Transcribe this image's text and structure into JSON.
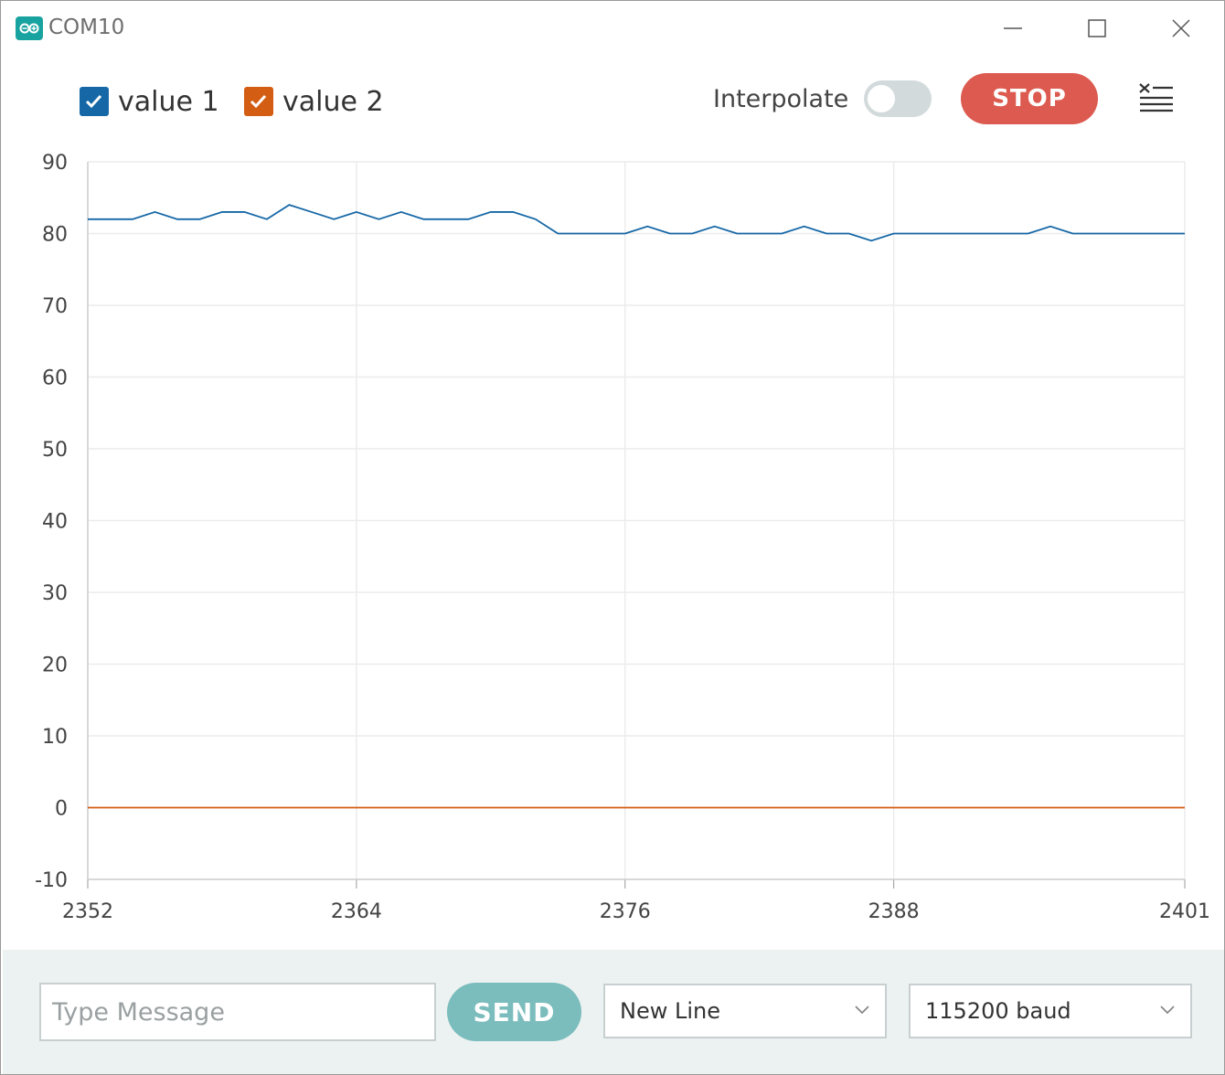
{
  "window": {
    "title": "COM10",
    "icons": {
      "app": "arduino-infinity-icon",
      "minimize": "minimize-icon",
      "maximize": "maximize-icon",
      "close": "close-icon"
    }
  },
  "toolbar": {
    "series": [
      {
        "label": "value 1",
        "checked": true,
        "color": "#1567a6"
      },
      {
        "label": "value 2",
        "checked": true,
        "color": "#d35d12"
      }
    ],
    "interpolate_label": "Interpolate",
    "interpolate_on": false,
    "stop_label": "STOP",
    "clear_icon": "clear-output-icon"
  },
  "chart_data": {
    "type": "line",
    "xlim": [
      2352,
      2401
    ],
    "ylim": [
      -10,
      90
    ],
    "x_ticks": [
      "2352",
      "2364",
      "2376",
      "2388",
      "2401"
    ],
    "y_ticks": [
      "90",
      "80",
      "70",
      "60",
      "50",
      "40",
      "30",
      "20",
      "10",
      "0",
      "-10"
    ],
    "grid": true,
    "x": [
      2352,
      2353,
      2354,
      2355,
      2356,
      2357,
      2358,
      2359,
      2360,
      2361,
      2362,
      2363,
      2364,
      2365,
      2366,
      2367,
      2368,
      2369,
      2370,
      2371,
      2372,
      2373,
      2374,
      2375,
      2376,
      2377,
      2378,
      2379,
      2380,
      2381,
      2382,
      2383,
      2384,
      2385,
      2386,
      2387,
      2388,
      2389,
      2390,
      2391,
      2392,
      2393,
      2394,
      2395,
      2396,
      2397,
      2398,
      2399,
      2400,
      2401
    ],
    "series": [
      {
        "name": "value 1",
        "color": "#1567a6",
        "values": [
          82,
          82,
          82,
          83,
          82,
          82,
          83,
          83,
          82,
          84,
          83,
          82,
          83,
          82,
          83,
          82,
          82,
          82,
          83,
          83,
          82,
          80,
          80,
          80,
          80,
          81,
          80,
          80,
          81,
          80,
          80,
          80,
          81,
          80,
          80,
          79,
          80,
          80,
          80,
          80,
          80,
          80,
          80,
          81,
          80,
          80,
          80,
          80,
          80,
          80
        ]
      },
      {
        "name": "value 2",
        "color": "#d35d12",
        "values": [
          0,
          0,
          0,
          0,
          0,
          0,
          0,
          0,
          0,
          0,
          0,
          0,
          0,
          0,
          0,
          0,
          0,
          0,
          0,
          0,
          0,
          0,
          0,
          0,
          0,
          0,
          0,
          0,
          0,
          0,
          0,
          0,
          0,
          0,
          0,
          0,
          0,
          0,
          0,
          0,
          0,
          0,
          0,
          0,
          0,
          0,
          0,
          0,
          0,
          0
        ]
      }
    ]
  },
  "footer": {
    "message_placeholder": "Type Message",
    "send_label": "SEND",
    "line_ending": "New Line",
    "baud_rate": "115200 baud",
    "chevron_icon": "chevron-down-icon"
  }
}
